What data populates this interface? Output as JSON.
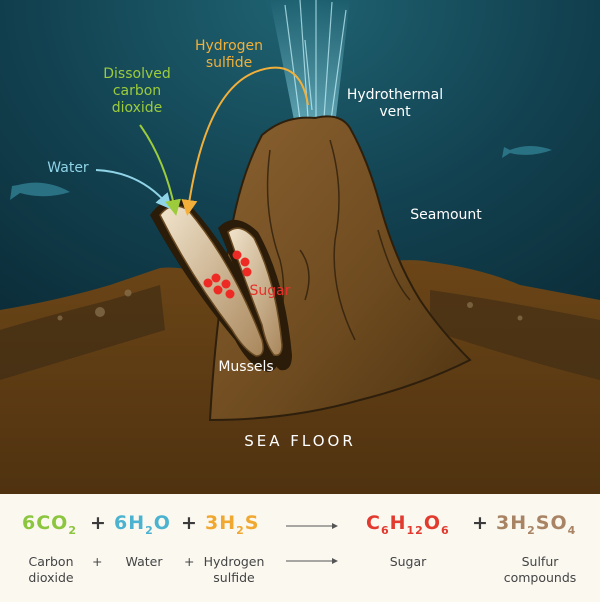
{
  "scene_labels": {
    "hydrogen_sulfide": "Hydrogen\nsulfide",
    "dissolved_co2": "Dissolved\ncarbon\ndioxide",
    "hydrothermal_vent": "Hydrothermal\nvent",
    "water": "Water",
    "seamount": "Seamount",
    "sugar": "Sugar",
    "mussels": "Mussels",
    "sea_floor": "SEA FLOOR"
  },
  "equation": {
    "reactants": [
      {
        "coef": "6",
        "formula": [
          [
            "CO",
            "2"
          ]
        ],
        "name": "Carbon\ndioxide",
        "color": "#8cc63f"
      },
      {
        "coef": "6",
        "formula": [
          [
            "H",
            "2"
          ],
          [
            "O",
            ""
          ]
        ],
        "name": "Water",
        "color": "#4bb3cf"
      },
      {
        "coef": "3",
        "formula": [
          [
            "H",
            "2"
          ],
          [
            "S",
            ""
          ]
        ],
        "name": "Hydrogen\nsulfide",
        "color": "#f0a830"
      }
    ],
    "products": [
      {
        "coef": "",
        "formula": [
          [
            "C",
            "6"
          ],
          [
            "H",
            "12"
          ],
          [
            "O",
            "6"
          ]
        ],
        "name": "Sugar",
        "color": "#e23a2e"
      },
      {
        "coef": "3",
        "formula": [
          [
            "H",
            "2"
          ],
          [
            "SO",
            "4"
          ]
        ],
        "name": "Sulfur\ncompounds",
        "color": "#a98464"
      }
    ],
    "plus": "+"
  },
  "colors": {
    "ocean_top": "#123e4a",
    "ocean_bottom": "#0a2a35",
    "sediment": "#6b4a1c",
    "seamount": "#7a5426",
    "vent_plume": "#7fe0f2"
  }
}
